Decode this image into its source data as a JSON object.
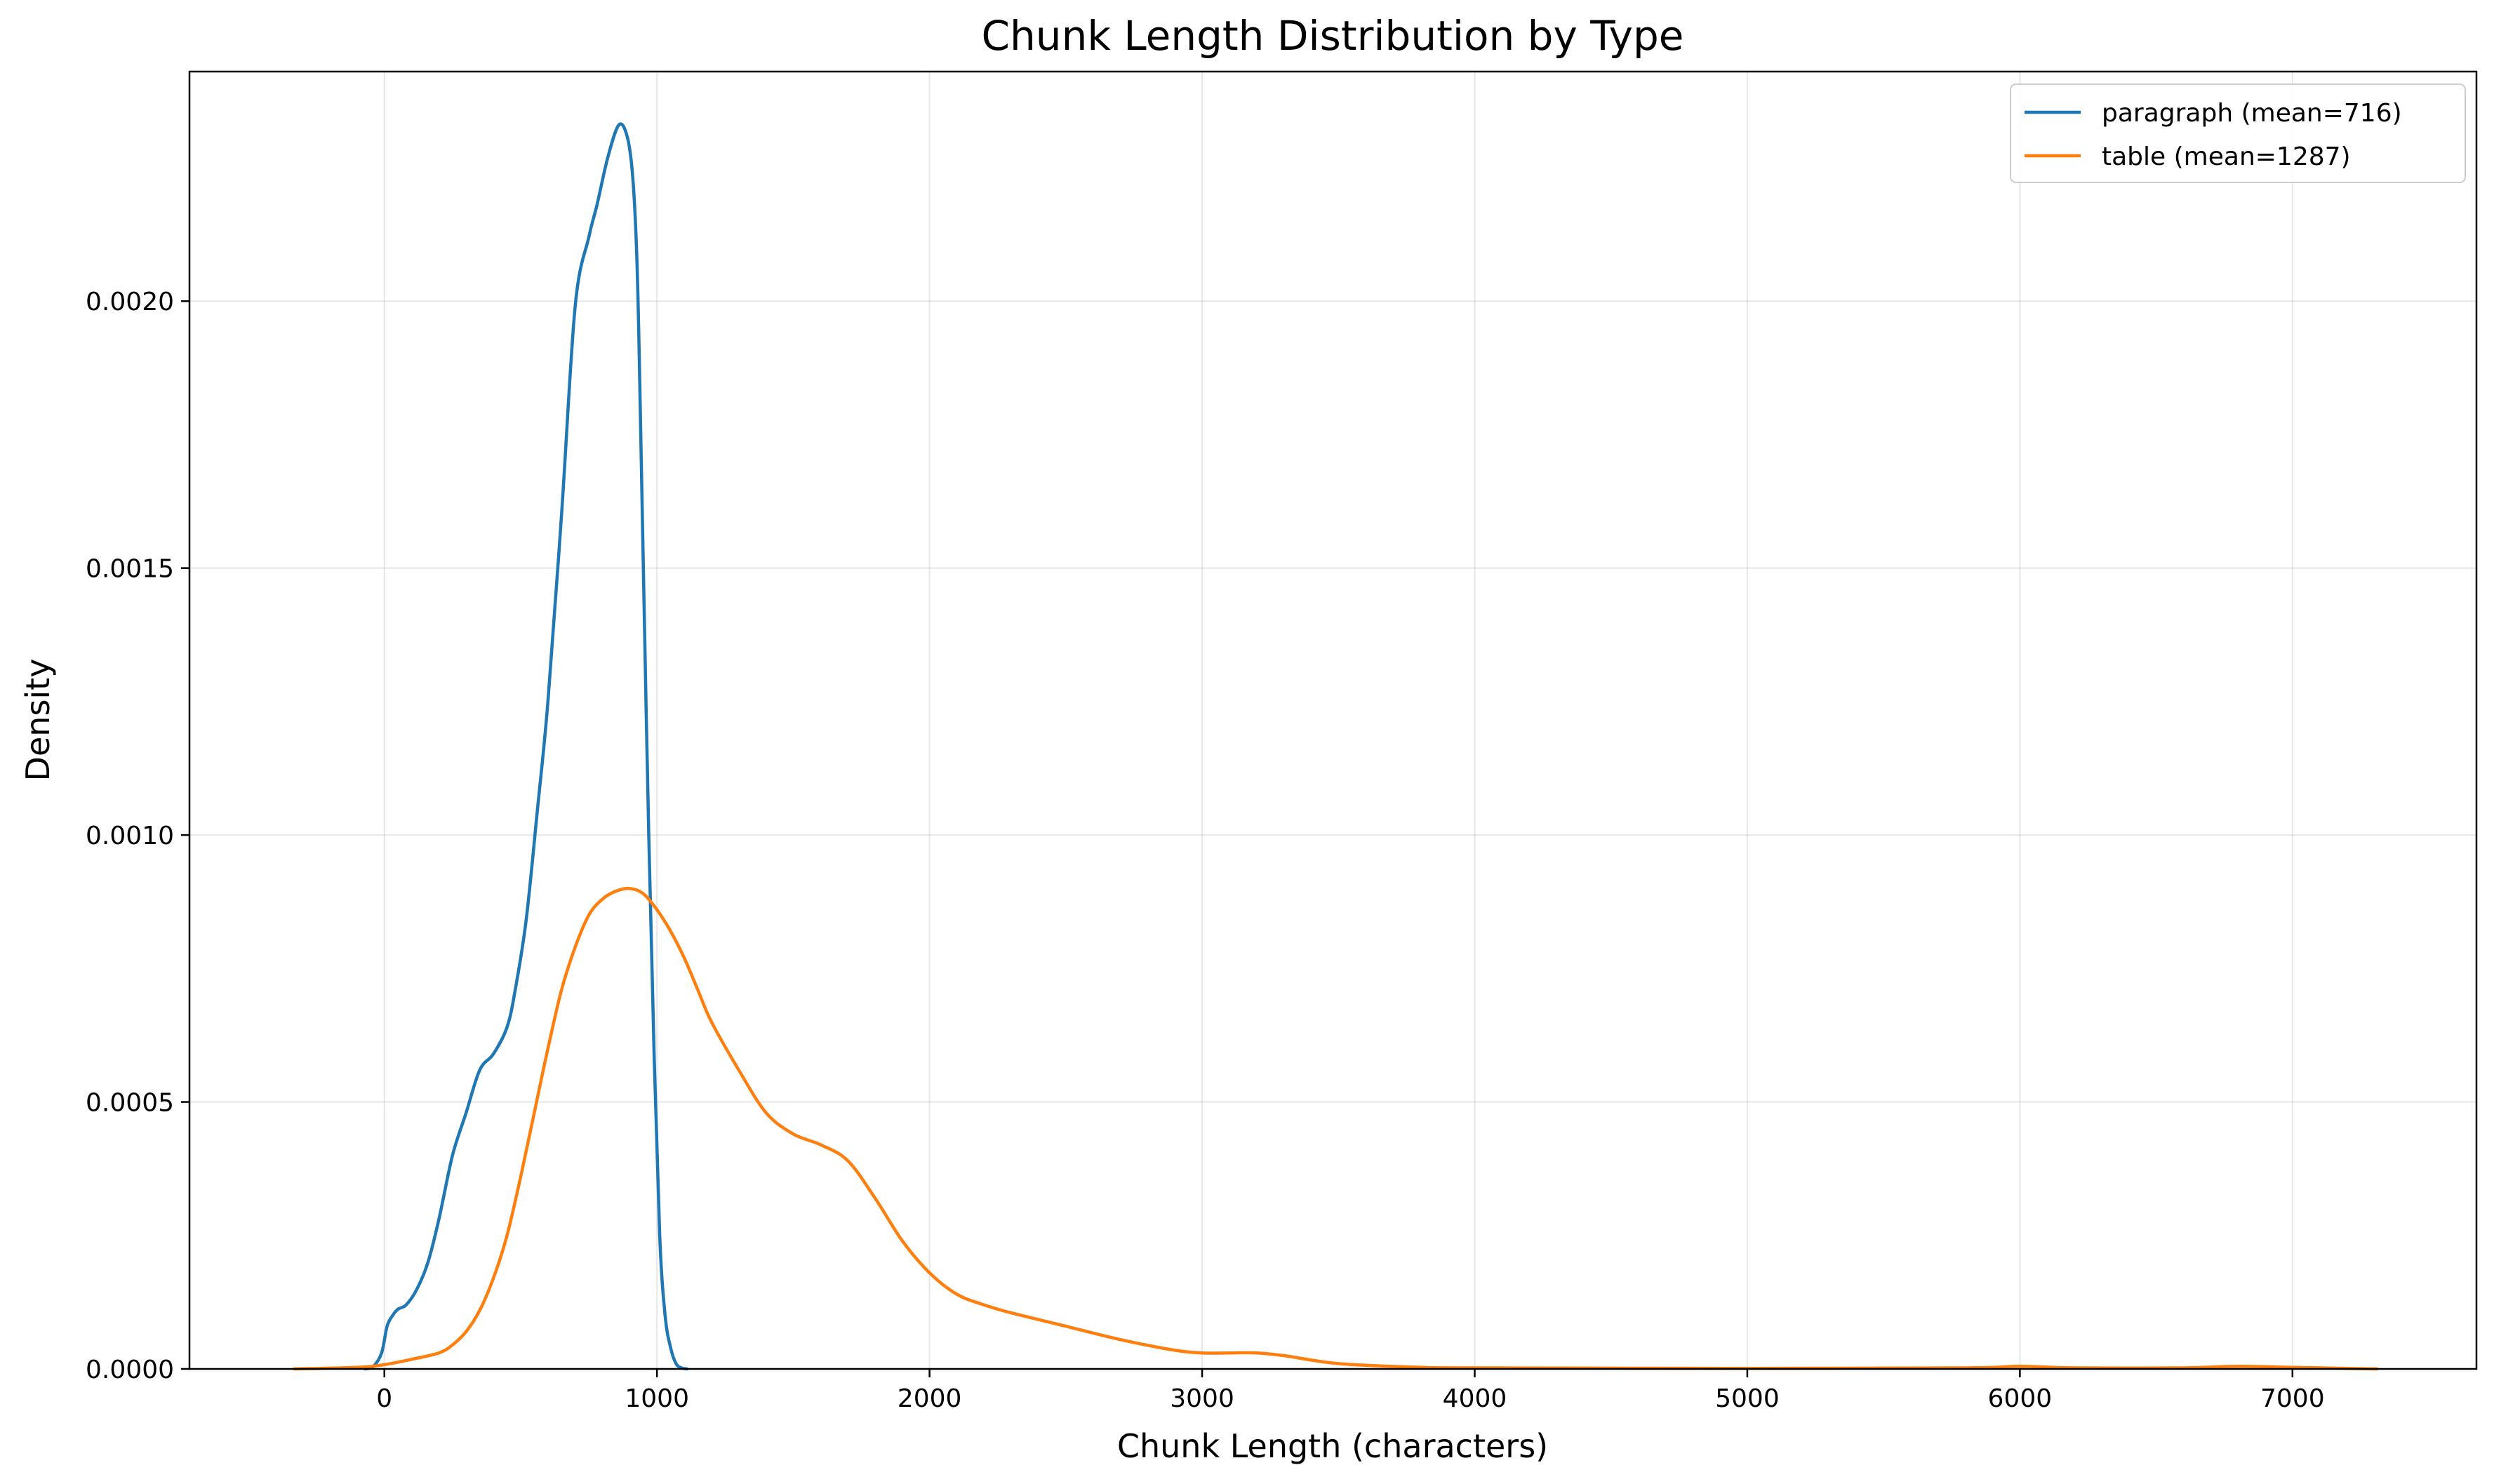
{
  "chart_data": {
    "type": "line",
    "title": "Chunk Length Distribution by Type",
    "xlabel": "Chunk Length (characters)",
    "ylabel": "Density",
    "xlim": [
      -715,
      7675
    ],
    "ylim": [
      0,
      0.00243
    ],
    "x_ticks": [
      0,
      1000,
      2000,
      3000,
      4000,
      5000,
      6000,
      7000
    ],
    "x_tick_labels": [
      "0",
      "1000",
      "2000",
      "3000",
      "4000",
      "5000",
      "6000",
      "7000"
    ],
    "y_ticks": [
      0,
      0.0005,
      0.001,
      0.0015,
      0.002
    ],
    "y_tick_labels": [
      "0.0000",
      "0.0005",
      "0.0010",
      "0.0015",
      "0.0020"
    ],
    "grid": true,
    "legend_position": "top-right",
    "series": [
      {
        "name": "paragraph (mean=716)",
        "color": "#1f77b4",
        "x": [
          -70,
          -40,
          -10,
          10,
          30,
          50,
          80,
          120,
          160,
          200,
          250,
          300,
          350,
          400,
          450,
          480,
          520,
          560,
          600,
          650,
          700,
          750,
          780,
          820,
          860,
          890,
          910,
          925,
          935,
          950,
          970,
          990,
          1010,
          1030,
          1050,
          1070,
          1090,
          1110
        ],
        "y": [
          0,
          5e-06,
          3e-05,
          8e-05,
          0.0001,
          0.000112,
          0.00012,
          0.00015,
          0.0002,
          0.00028,
          0.0004,
          0.00048,
          0.00056,
          0.00059,
          0.00064,
          0.00071,
          0.00084,
          0.00104,
          0.00125,
          0.0016,
          0.00199,
          0.00212,
          0.00218,
          0.00227,
          0.00233,
          0.00231,
          0.00224,
          0.0021,
          0.0019,
          0.0015,
          0.001,
          0.00058,
          0.00025,
          0.0001,
          4e-05,
          1e-05,
          2e-06,
          0
        ]
      },
      {
        "name": "table (mean=1287)",
        "color": "#ff7f0e",
        "x": [
          -330,
          -100,
          0,
          100,
          200,
          250,
          300,
          350,
          400,
          450,
          500,
          550,
          600,
          650,
          700,
          750,
          800,
          850,
          900,
          950,
          1000,
          1050,
          1100,
          1150,
          1200,
          1300,
          1400,
          1500,
          1600,
          1700,
          1800,
          1900,
          2000,
          2100,
          2200,
          2300,
          2500,
          2700,
          2900,
          3000,
          3100,
          3200,
          3300,
          3500,
          3800,
          4000,
          5000,
          5800,
          6000,
          6200,
          6600,
          6800,
          7000,
          7200,
          7310
        ],
        "y": [
          0,
          3e-06,
          8e-06,
          1.8e-05,
          3e-05,
          4.5e-05,
          7e-05,
          0.00011,
          0.00017,
          0.00025,
          0.00036,
          0.00048,
          0.0006,
          0.00071,
          0.00079,
          0.00085,
          0.00088,
          0.000895,
          0.0009,
          0.00089,
          0.00086,
          0.00082,
          0.00077,
          0.00071,
          0.00065,
          0.00056,
          0.00048,
          0.00044,
          0.00042,
          0.00039,
          0.00032,
          0.00024,
          0.00018,
          0.00014,
          0.00012,
          0.000105,
          8e-05,
          5.5e-05,
          3.5e-05,
          3e-05,
          3e-05,
          3e-05,
          2.5e-05,
          1e-05,
          3e-06,
          2e-06,
          1e-06,
          2e-06,
          5e-06,
          2e-06,
          2e-06,
          5e-06,
          3e-06,
          1e-06,
          0
        ]
      }
    ]
  }
}
